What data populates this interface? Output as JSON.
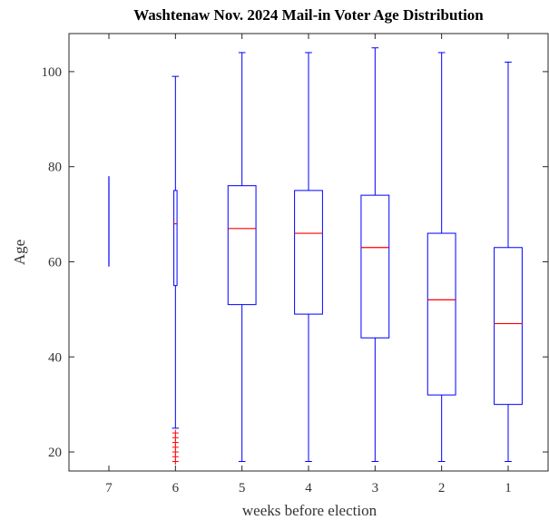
{
  "chart_data": {
    "type": "boxplot",
    "title": "Washtenaw Nov. 2024 Mail-in Voter Age Distribution",
    "xlabel": "weeks before election",
    "ylabel": "Age",
    "categories": [
      "7",
      "6",
      "5",
      "4",
      "3",
      "2",
      "1"
    ],
    "ylim": [
      16,
      108
    ],
    "yticks": [
      20,
      40,
      60,
      80,
      100
    ],
    "grid": false,
    "legend": "none",
    "colors": {
      "box": "#0000ff",
      "median": "#ff0000",
      "outlier": "#ff0000",
      "axis": "#262626"
    },
    "boxes": [
      {
        "category": "7",
        "whisker_low": 59,
        "q1": 59,
        "median": 78,
        "q3": 78,
        "whisker_high": 78,
        "outliers": []
      },
      {
        "category": "6",
        "whisker_low": 25,
        "q1": 55,
        "median": 68,
        "q3": 75,
        "whisker_high": 99,
        "outliers": [
          18,
          19,
          20,
          21,
          22,
          23,
          24
        ]
      },
      {
        "category": "5",
        "whisker_low": 18,
        "q1": 51,
        "median": 67,
        "q3": 76,
        "whisker_high": 104,
        "outliers": []
      },
      {
        "category": "4",
        "whisker_low": 18,
        "q1": 49,
        "median": 66,
        "q3": 75,
        "whisker_high": 104,
        "outliers": []
      },
      {
        "category": "3",
        "whisker_low": 18,
        "q1": 44,
        "median": 63,
        "q3": 74,
        "whisker_high": 105,
        "outliers": []
      },
      {
        "category": "2",
        "whisker_low": 18,
        "q1": 32,
        "median": 52,
        "q3": 66,
        "whisker_high": 104,
        "outliers": []
      },
      {
        "category": "1",
        "whisker_low": 18,
        "q1": 30,
        "median": 47,
        "q3": 63,
        "whisker_high": 102,
        "outliers": []
      }
    ]
  }
}
